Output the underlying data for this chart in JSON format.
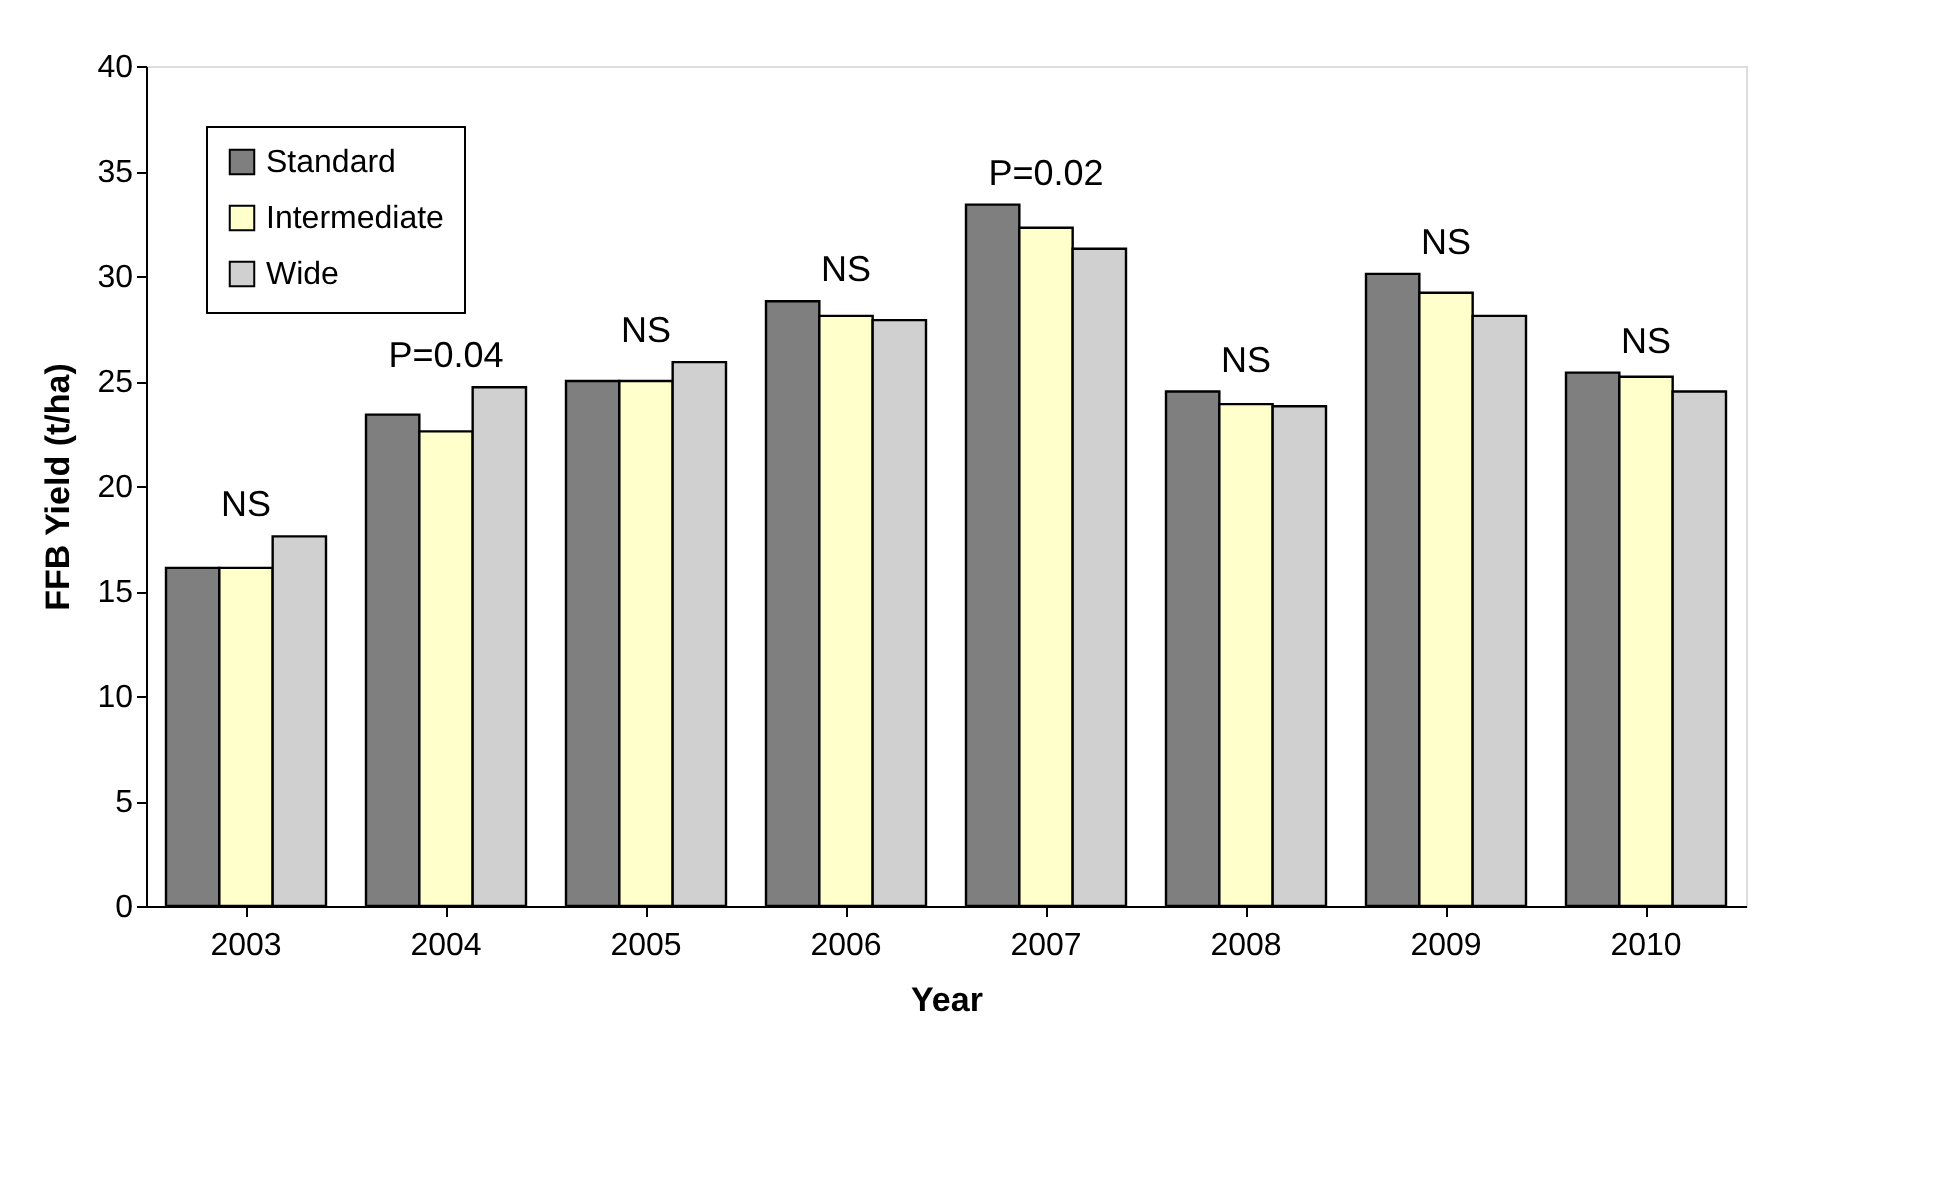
{
  "chart_data": {
    "type": "bar",
    "xlabel": "Year",
    "ylabel": "FFB Yield (t/ha)",
    "categories": [
      "2003",
      "2004",
      "2005",
      "2006",
      "2007",
      "2008",
      "2009",
      "2010"
    ],
    "series": [
      {
        "name": "Standard",
        "color": "#7f7f7f",
        "values": [
          16.1,
          23.4,
          25.0,
          28.8,
          33.4,
          24.5,
          30.1,
          25.4
        ]
      },
      {
        "name": "Intermediate",
        "color": "#ffffcc",
        "values": [
          16.1,
          22.6,
          25.0,
          28.1,
          32.3,
          23.9,
          29.2,
          25.2
        ]
      },
      {
        "name": "Wide",
        "color": "#d0d0d0",
        "values": [
          17.6,
          24.7,
          25.9,
          27.9,
          31.3,
          23.8,
          28.1,
          24.5
        ]
      }
    ],
    "ylim": [
      0,
      40
    ],
    "yticks": [
      0,
      5,
      10,
      15,
      20,
      25,
      30,
      35,
      40
    ],
    "grid": false,
    "legend": "top left",
    "annotations": [
      "NS",
      "P=0.04",
      "NS",
      "NS",
      "P=0.02",
      "NS",
      "NS",
      "NS"
    ]
  }
}
